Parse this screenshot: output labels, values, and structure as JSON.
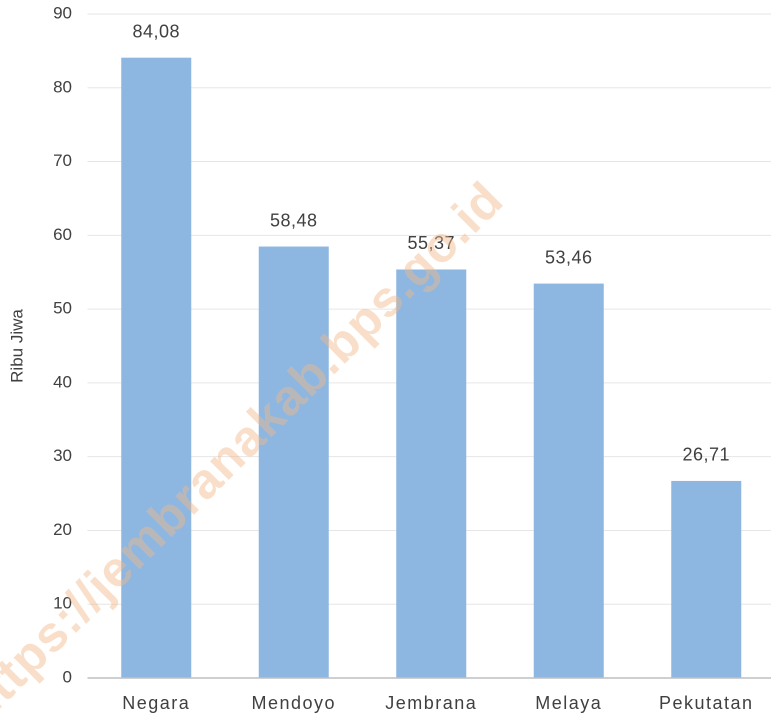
{
  "chart_data": {
    "type": "bar",
    "y_label": "Ribu Jiwa",
    "watermark": "https://jembranakab.bps.go.id",
    "categories": [
      "Negara",
      "Mendoyo",
      "Jembrana",
      "Melaya",
      "Pekutatan"
    ],
    "values": [
      84.08,
      58.48,
      55.37,
      53.46,
      26.71
    ],
    "value_labels": [
      "84,08",
      "58,48",
      "55,37",
      "53,46",
      "26,71"
    ],
    "color": "#8db6e1",
    "ylim": [
      0,
      90
    ],
    "yticks": [
      0,
      10,
      20,
      30,
      40,
      50,
      60,
      70,
      80,
      90
    ],
    "grid": true
  }
}
